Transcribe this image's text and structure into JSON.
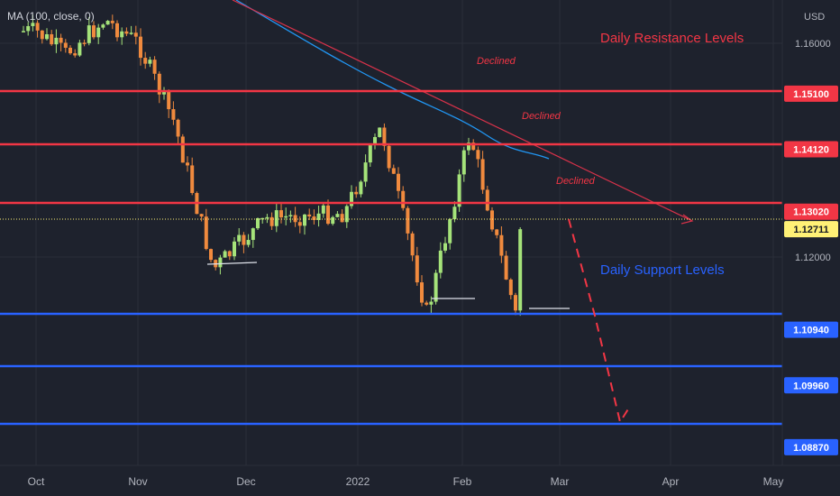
{
  "indicator_label": "MA (100, close, 0)",
  "currency": "USD",
  "annotations": {
    "resistance_title": "Daily Resistance Levels",
    "support_title": "Daily Support Levels",
    "declined": [
      "Declined",
      "Declined",
      "Declined"
    ]
  },
  "colors": {
    "background": "#1e222d",
    "up_candle": "#a5e37a",
    "down_candle": "#f08a3e",
    "resistance": "#f23645",
    "support": "#2962ff",
    "ma_line": "#2196f3",
    "trendline": "#d8324a",
    "last_price_tag": "#fff176"
  },
  "chart_data": {
    "type": "candlestick",
    "symbol_currency": "USD",
    "x_tick_labels": [
      "Oct",
      "Nov",
      "Dec",
      "2022",
      "Feb",
      "Mar",
      "Apr",
      "May"
    ],
    "y_tick_labels": [
      "1.16000",
      "1.12000"
    ],
    "ylim": [
      1.0855,
      1.1675
    ],
    "last_price": 1.12711,
    "resistance_levels": [
      1.151,
      1.1412,
      1.1302
    ],
    "support_levels": [
      1.1094,
      1.0996,
      1.0887
    ],
    "moving_average": {
      "type": "MA",
      "length": 100,
      "source": "close",
      "offset": 0
    },
    "price_path_approx": [
      {
        "date": "2021-10-01",
        "price": 1.162
      },
      {
        "date": "2021-10-10",
        "price": 1.158
      },
      {
        "date": "2021-10-22",
        "price": 1.164
      },
      {
        "date": "2021-11-01",
        "price": 1.16
      },
      {
        "date": "2021-11-12",
        "price": 1.146
      },
      {
        "date": "2021-11-24",
        "price": 1.12
      },
      {
        "date": "2021-12-10",
        "price": 1.129
      },
      {
        "date": "2022-01-03",
        "price": 1.13
      },
      {
        "date": "2022-01-14",
        "price": 1.145
      },
      {
        "date": "2022-01-28",
        "price": 1.112
      },
      {
        "date": "2022-02-10",
        "price": 1.144
      },
      {
        "date": "2022-02-24",
        "price": 1.112
      },
      {
        "date": "2022-02-26",
        "price": 1.127
      }
    ],
    "projection": [
      "Declined",
      "Daily Support Levels"
    ],
    "grid": true
  }
}
